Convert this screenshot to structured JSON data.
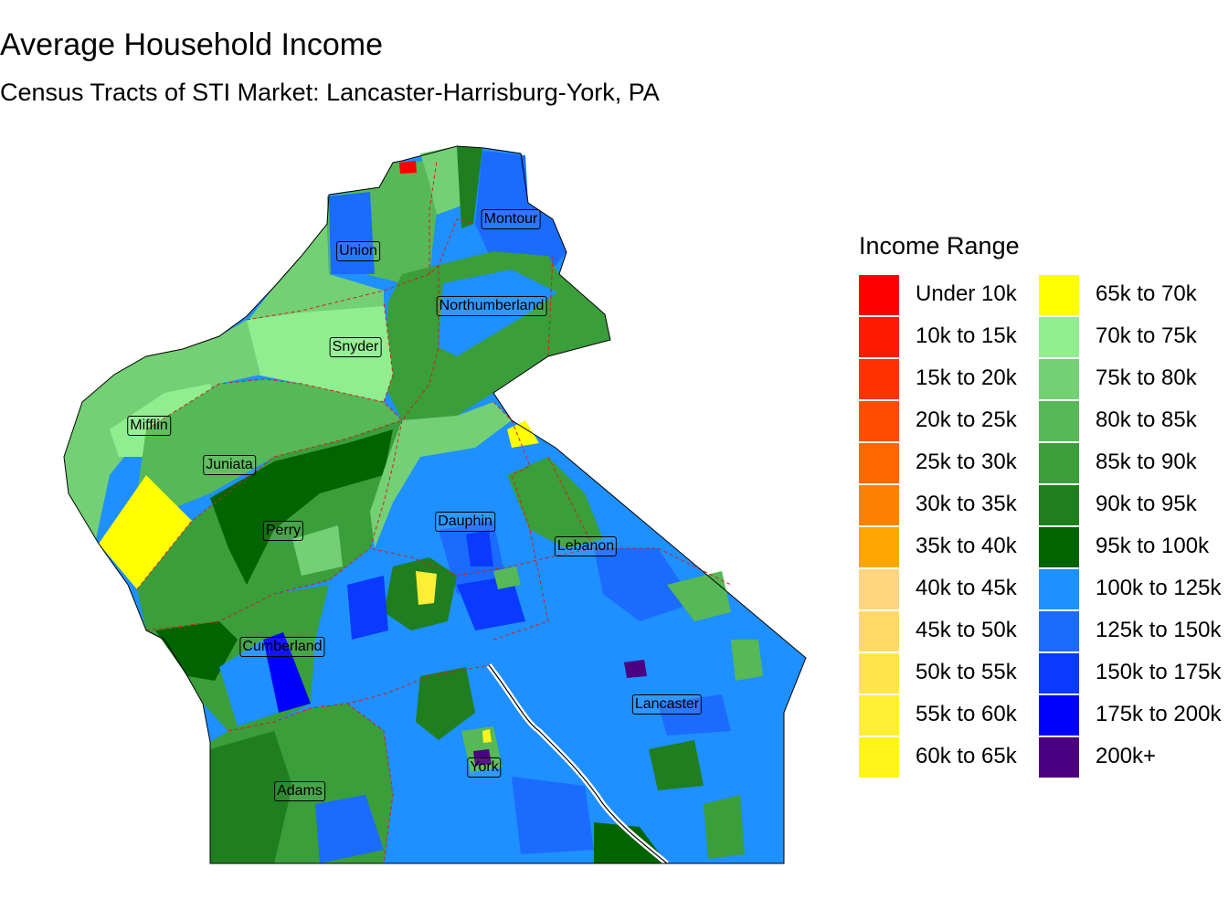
{
  "title": "Average Household Income",
  "subtitle": "Census Tracts of STI Market: Lancaster-Harrisburg-York, PA",
  "legend": {
    "title": "Income Range",
    "items": [
      {
        "label": "Under 10k",
        "color": "#FF0000"
      },
      {
        "label": "10k to 15k",
        "color": "#FF1A00"
      },
      {
        "label": "15k to 20k",
        "color": "#FF3300"
      },
      {
        "label": "20k to 25k",
        "color": "#FF4D00"
      },
      {
        "label": "25k to 30k",
        "color": "#FF6600"
      },
      {
        "label": "30k to 35k",
        "color": "#FF8000"
      },
      {
        "label": "35k to 40k",
        "color": "#FFA500"
      },
      {
        "label": "40k to 45k",
        "color": "#FFD580"
      },
      {
        "label": "45k to 50k",
        "color": "#FFD966"
      },
      {
        "label": "50k to 55k",
        "color": "#FFE44D"
      },
      {
        "label": "55k to 60k",
        "color": "#FFEE33"
      },
      {
        "label": "60k to 65k",
        "color": "#FFF51A"
      },
      {
        "label": "65k to 70k",
        "color": "#FFFF00"
      },
      {
        "label": "70k to 75k",
        "color": "#90EE90"
      },
      {
        "label": "75k to 80k",
        "color": "#74D074"
      },
      {
        "label": "80k to 85k",
        "color": "#56B856"
      },
      {
        "label": "85k to 90k",
        "color": "#3A9E3A"
      },
      {
        "label": "90k to 95k",
        "color": "#1F7E1F"
      },
      {
        "label": "95k to 100k",
        "color": "#006400"
      },
      {
        "label": "100k to 125k",
        "color": "#1E90FF"
      },
      {
        "label": "125k to 150k",
        "color": "#1C6BFF"
      },
      {
        "label": "150k to 175k",
        "color": "#0A3AFF"
      },
      {
        "label": "175k to 200k",
        "color": "#0000FF"
      },
      {
        "label": "200k+",
        "color": "#4B0082"
      }
    ]
  },
  "counties": [
    {
      "name": "Montour",
      "key": "montour"
    },
    {
      "name": "Union",
      "key": "union"
    },
    {
      "name": "Northumberland",
      "key": "northumberland"
    },
    {
      "name": "Snyder",
      "key": "snyder"
    },
    {
      "name": "Mifflin",
      "key": "mifflin"
    },
    {
      "name": "Juniata",
      "key": "juniata"
    },
    {
      "name": "Perry",
      "key": "perry"
    },
    {
      "name": "Dauphin",
      "key": "dauphin"
    },
    {
      "name": "Lebanon",
      "key": "lebanon"
    },
    {
      "name": "Cumberland",
      "key": "cumberland"
    },
    {
      "name": "Lancaster",
      "key": "lancaster"
    },
    {
      "name": "York",
      "key": "york"
    },
    {
      "name": "Adams",
      "key": "adams"
    }
  ]
}
